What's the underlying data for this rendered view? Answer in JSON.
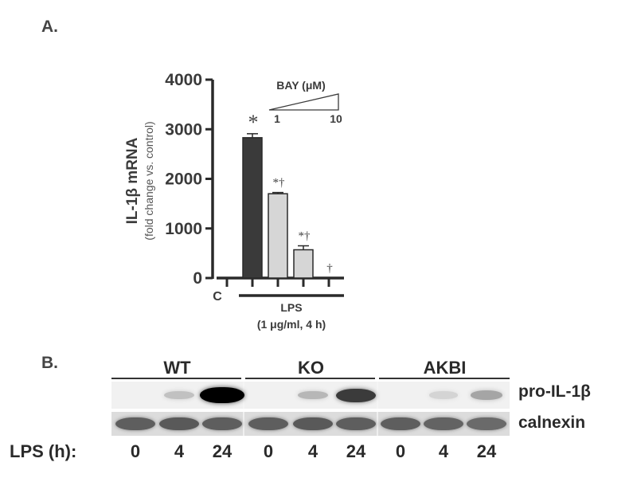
{
  "panel_a": {
    "letter": "A."
  },
  "panel_b": {
    "letter": "B."
  },
  "chart_data": {
    "type": "bar",
    "title": "",
    "ylabel": "IL-1β mRNA",
    "ylabel_sub": "(fold change vs. control)",
    "ylim": [
      0,
      4000
    ],
    "yticks": [
      "0",
      "1000",
      "2000",
      "3000",
      "4000"
    ],
    "categories": [
      "C",
      "LPS",
      "LPS + BAY 1",
      "LPS + BAY mid",
      "LPS + BAY 10"
    ],
    "values": [
      0,
      2830,
      1700,
      570,
      0
    ],
    "errors": [
      0,
      80,
      25,
      80,
      0
    ],
    "significance": [
      "",
      "*",
      "*†",
      "*†",
      "†"
    ],
    "control_label": "C",
    "treatment_label": "LPS",
    "treatment_sub": "(1 μg/ml, 4 h)",
    "dose_label": "BAY (μM)",
    "dose_min": "1",
    "dose_max": "10",
    "bar_colors": [
      "#ffffff",
      "#3a3a3a",
      "#d6d6d6",
      "#d6d6d6",
      "#d6d6d6"
    ]
  },
  "blot": {
    "groups": [
      "WT",
      "KO",
      "AKBI"
    ],
    "rows": [
      "pro-IL-1β",
      "calnexin"
    ],
    "lps_label": "LPS (h):",
    "timepoints": [
      "0",
      "4",
      "24",
      "0",
      "4",
      "24",
      "0",
      "4",
      "24"
    ],
    "pro_il1b_intensity": [
      0.0,
      0.18,
      1.0,
      0.0,
      0.22,
      0.75,
      0.0,
      0.1,
      0.3
    ],
    "calnexin_intensity": [
      0.6,
      0.62,
      0.6,
      0.6,
      0.62,
      0.6,
      0.6,
      0.58,
      0.55
    ]
  }
}
